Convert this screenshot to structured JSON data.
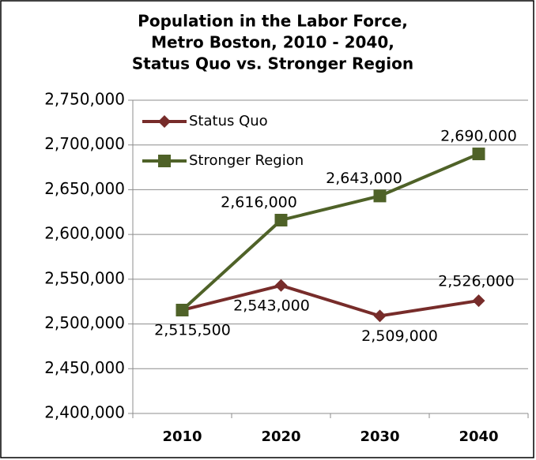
{
  "chart_data": {
    "type": "line",
    "title": [
      "Population in the Labor Force,",
      "Metro Boston, 2010 - 2040,",
      "Status Quo vs. Stronger Region"
    ],
    "categories": [
      "2010",
      "2020",
      "2030",
      "2040"
    ],
    "series": [
      {
        "name": "Status Quo",
        "color": "#772c2a",
        "marker": "diamond",
        "values": [
          2515500,
          2543000,
          2509000,
          2526000
        ],
        "value_labels": [
          "2,515,500",
          "2,543,000",
          "2,509,000",
          "2,526,000"
        ]
      },
      {
        "name": "Stronger Region",
        "color": "#4f6228",
        "marker": "square",
        "values": [
          2515500,
          2616000,
          2643000,
          2690000
        ],
        "value_labels": [
          null,
          "2,616,000",
          "2,643,000",
          "2,690,000"
        ]
      }
    ],
    "ylim": [
      2400000,
      2750000
    ],
    "yticks": [
      {
        "value": 2400000,
        "label": "2,400,000"
      },
      {
        "value": 2450000,
        "label": "2,450,000"
      },
      {
        "value": 2500000,
        "label": "2,500,000"
      },
      {
        "value": 2550000,
        "label": "2,550,000"
      },
      {
        "value": 2600000,
        "label": "2,600,000"
      },
      {
        "value": 2650000,
        "label": "2,650,000"
      },
      {
        "value": 2700000,
        "label": "2,700,000"
      },
      {
        "value": 2750000,
        "label": "2,750,000"
      }
    ],
    "grid": true,
    "legend": "upper left"
  }
}
